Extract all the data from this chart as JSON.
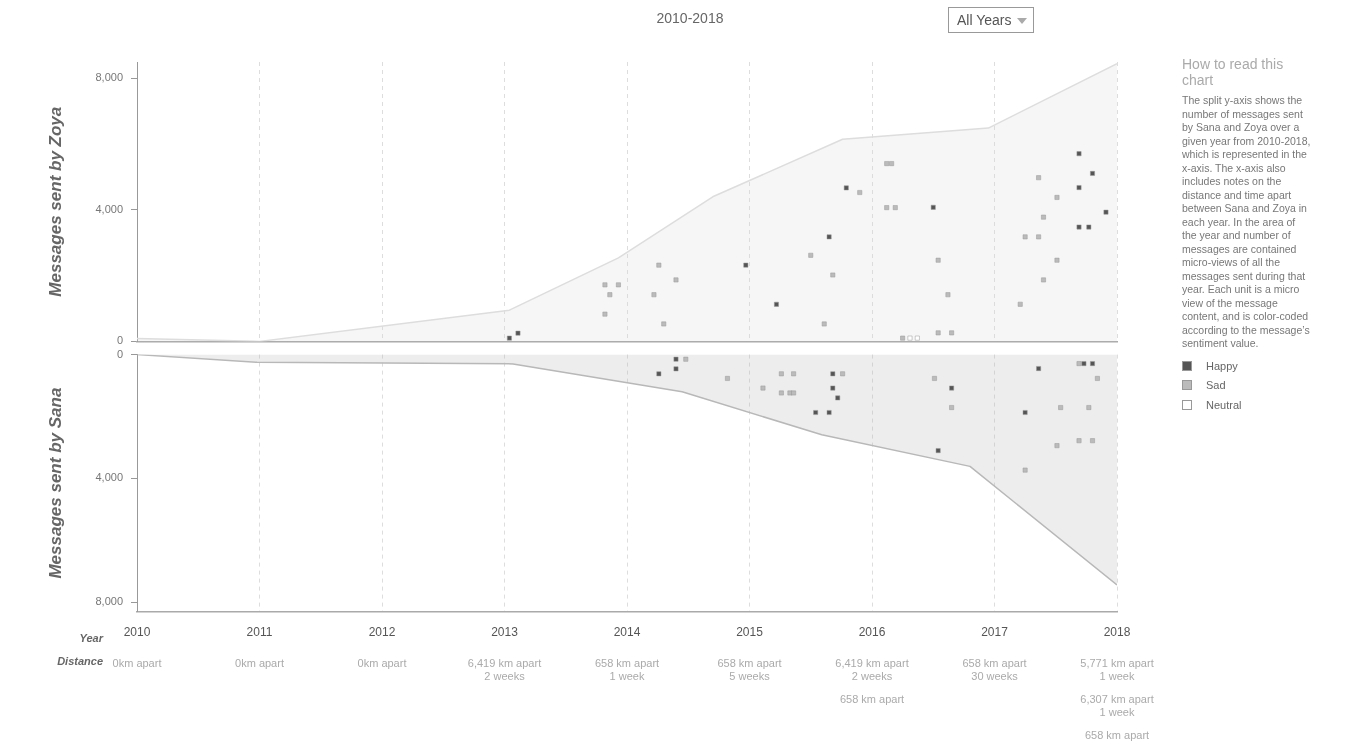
{
  "chart_data": [
    {
      "type": "scatter",
      "title": "2010-2018",
      "ylabel": "Messages sent by Zoya",
      "xlim": [
        2010,
        2018
      ],
      "xticks": [
        2010,
        2011,
        2012,
        2013,
        2014,
        2015,
        2016,
        2017,
        2018
      ],
      "ylim": [
        0,
        8500
      ],
      "yticks": [
        {
          "value": 0,
          "label": "0"
        },
        {
          "value": 4000,
          "label": "4,000"
        },
        {
          "value": 8000,
          "label": "8,000"
        }
      ],
      "grid": "x",
      "legend": "right",
      "marker": "square",
      "tick_labels": "y",
      "series": [
        {
          "type": "area",
          "marker": "none",
          "color": "#dddddd",
          "x": [
            2010,
            2011,
            2013.04,
            2013.93,
            2014.7,
            2015.76,
            2016.95,
            2018
          ],
          "values": [
            90,
            0,
            950,
            2540,
            4400,
            6150,
            6490,
            8450
          ]
        },
        {
          "name": "Happy",
          "color": "#555555",
          "x": [
            2013.04,
            2013.11,
            2014.97,
            2015.22,
            2015.65,
            2015.79,
            2016.5,
            2017.69,
            2017.69,
            2017.8,
            2017.69,
            2017.77,
            2017.91
          ],
          "values": [
            100,
            250,
            2320,
            1130,
            3180,
            4670,
            4080,
            5710,
            4680,
            5110,
            3480,
            3480,
            3930
          ]
        },
        {
          "name": "Sad",
          "color": "#bbbbbb",
          "x": [
            2013.82,
            2013.93,
            2013.86,
            2013.82,
            2014.26,
            2014.22,
            2014.4,
            2014.3,
            2015.5,
            2015.68,
            2015.61,
            2015.9,
            2016.12,
            2016.16,
            2016.12,
            2016.19,
            2016.25,
            2016.54,
            2016.62,
            2016.54,
            2016.65,
            2017.21,
            2017.25,
            2017.36,
            2017.36,
            2017.4,
            2017.4,
            2017.51,
            2017.51
          ],
          "values": [
            1720,
            1720,
            1420,
            830,
            2320,
            1420,
            1870,
            530,
            2620,
            2020,
            530,
            4530,
            5410,
            5410,
            4070,
            4070,
            100,
            2470,
            1420,
            260,
            260,
            1130,
            3180,
            3180,
            4980,
            3780,
            1870,
            4380,
            2470
          ]
        },
        {
          "name": "Neutral",
          "color": "#ffffff",
          "x": [
            2016.31,
            2016.37
          ],
          "values": [
            100,
            100
          ]
        }
      ],
      "annotations": [
        "All Years",
        "How to read this chart",
        "The split y-axis shows the number of messages sent by Sana and Zoya over a given year from 2010-2018, which is represented in the x-axis. The x-axis also includes notes on the distance and time apart between Sana and Zoya in each year. In the area of the year and number of messages are contained micro-views of all the messages sent during that year. Each unit is a micro view of the message content, and is color-coded according to the message’s sentiment value."
      ]
    },
    {
      "type": "scatter",
      "xlabel": "Year",
      "ylabel": "Messages sent by Sana",
      "xlim": [
        2010,
        2018
      ],
      "xticks": [
        2010,
        2011,
        2012,
        2013,
        2014,
        2015,
        2016,
        2017,
        2018
      ],
      "ylim": [
        8300,
        0
      ],
      "yticks": [
        {
          "value": 0,
          "label": "0"
        },
        {
          "value": 4000,
          "label": "4,000"
        },
        {
          "value": 8000,
          "label": "8,000"
        }
      ],
      "grid": "x",
      "marker": "square",
      "series": [
        {
          "type": "area",
          "marker": "none",
          "color": "#b8b8b8",
          "x": [
            2010,
            2010.98,
            2013.07,
            2014.45,
            2015.59,
            2016.8,
            2018
          ],
          "values": [
            0,
            250,
            300,
            1200,
            2590,
            3610,
            7440
          ]
        },
        {
          "color": "#555555",
          "x": [
            2014.4,
            2014.4,
            2014.26,
            2015.68,
            2015.68,
            2015.72,
            2015.54,
            2015.65,
            2016.65,
            2016.54,
            2017.36,
            2017.25,
            2017.73,
            2017.8
          ],
          "values": [
            150,
            460,
            620,
            620,
            1080,
            1400,
            1870,
            1870,
            1080,
            3100,
            450,
            1870,
            290,
            290
          ]
        },
        {
          "color": "#bbbbbb",
          "x": [
            2014.48,
            2014.82,
            2015.26,
            2015.36,
            2015.11,
            2015.26,
            2015.33,
            2015.36,
            2015.76,
            2016.51,
            2016.65,
            2017.25,
            2017.51,
            2017.54,
            2017.69,
            2017.8,
            2017.77,
            2017.69,
            2017.84
          ],
          "values": [
            150,
            770,
            620,
            620,
            1080,
            1240,
            1240,
            1240,
            620,
            770,
            1710,
            3730,
            2940,
            1710,
            2780,
            2780,
            1710,
            290,
            770
          ]
        }
      ],
      "annotations": [
        "Distance",
        "0km apart",
        "0km apart",
        "0km apart",
        "6,419 km apart\n2 weeks",
        "658 km apart\n1 week",
        "658 km apart\n5 weeks",
        "6,419 km apart\n2 weeks\n\n658 km apart",
        "658 km apart\n30 weeks",
        "5,771 km apart\n1 week\n\n6,307 km apart\n1 week\n\n658 km apart"
      ]
    }
  ]
}
